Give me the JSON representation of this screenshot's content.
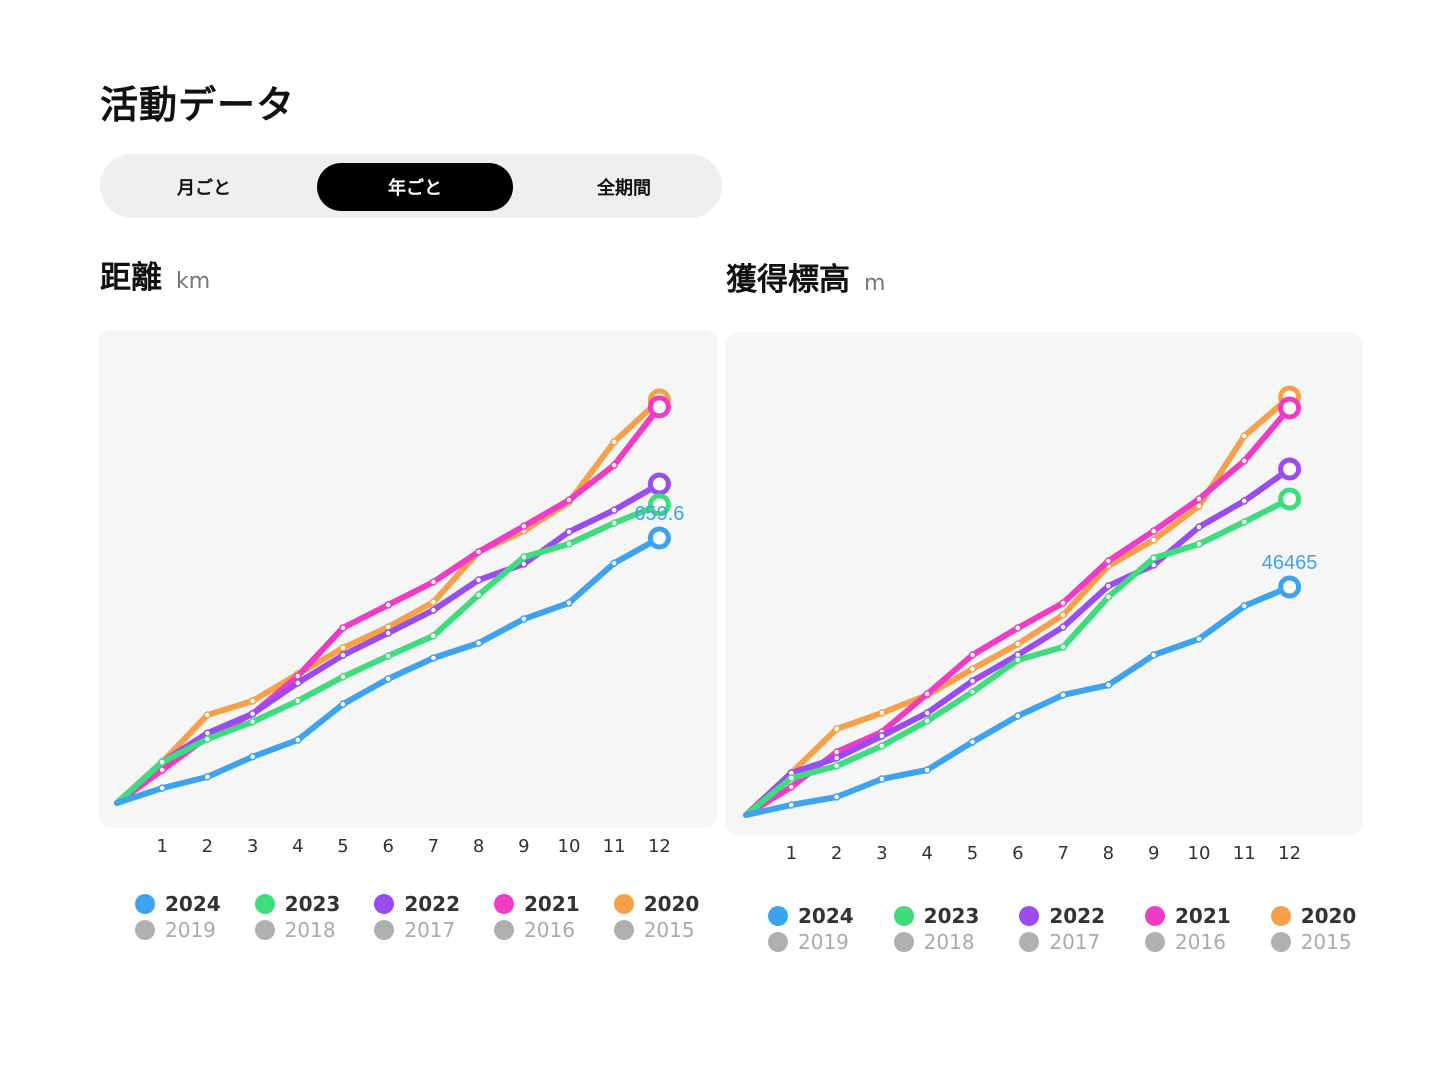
{
  "page_title": "活動データ",
  "segments": [
    {
      "label": "月ごと",
      "active": false
    },
    {
      "label": "年ごと",
      "active": true
    },
    {
      "label": "全期間",
      "active": false
    }
  ],
  "legend": [
    {
      "year": "2024",
      "old_year": "2019",
      "color": "#3ea3ee"
    },
    {
      "year": "2023",
      "old_year": "2018",
      "color": "#3edc7c"
    },
    {
      "year": "2022",
      "old_year": "2017",
      "color": "#9a4cf0"
    },
    {
      "year": "2021",
      "old_year": "2016",
      "color": "#f03cc4"
    },
    {
      "year": "2020",
      "old_year": "2015",
      "color": "#f7a04a"
    }
  ],
  "inactive_color": "#b0b0b0",
  "chart_data": [
    {
      "type": "line",
      "title": "距離",
      "unit": "km",
      "categories": [
        "1",
        "2",
        "3",
        "4",
        "5",
        "6",
        "7",
        "8",
        "9",
        "10",
        "11",
        "12"
      ],
      "highlight_label": "659.6",
      "series": [
        {
          "name": "2020",
          "color": "#f7a04a",
          "values": [
            102,
            219,
            254,
            321,
            386,
            438,
            500,
            625,
            677,
            749,
            899,
            1003
          ]
        },
        {
          "name": "2021",
          "color": "#f03cc4",
          "values": [
            82,
            164,
            222,
            316,
            436,
            493,
            550,
            625,
            689,
            754,
            841,
            986
          ]
        },
        {
          "name": "2022",
          "color": "#9a4cf0",
          "values": [
            102,
            174,
            222,
            299,
            368,
            423,
            480,
            555,
            595,
            675,
            729,
            794
          ]
        },
        {
          "name": "2023",
          "color": "#3edc7c",
          "values": [
            102,
            159,
            202,
            254,
            314,
            366,
            416,
            518,
            612,
            645,
            697,
            742
          ]
        },
        {
          "name": "2024",
          "color": "#3ea3ee",
          "values": [
            37,
            65,
            115,
            157,
            246,
            309,
            361,
            398,
            458,
            498,
            597,
            659.6
          ]
        }
      ]
    },
    {
      "type": "line",
      "title": "獲得標高",
      "unit": "m",
      "categories": [
        "1",
        "2",
        "3",
        "4",
        "5",
        "6",
        "7",
        "8",
        "9",
        "10",
        "11",
        "12"
      ],
      "highlight_label": "46465",
      "series": [
        {
          "name": "2020",
          "color": "#f7a04a",
          "values": [
            8560,
            17530,
            20790,
            24460,
            29760,
            34850,
            40760,
            50750,
            56050,
            62980,
            77240,
            85190
          ]
        },
        {
          "name": "2021",
          "color": "#f03cc4",
          "values": [
            5710,
            12840,
            16920,
            24660,
            32610,
            38110,
            43210,
            51770,
            57880,
            64400,
            72150,
            82950
          ]
        },
        {
          "name": "2022",
          "color": "#9a4cf0",
          "values": [
            8560,
            11620,
            16100,
            20790,
            27310,
            32610,
            38310,
            46670,
            50950,
            58690,
            63990,
            70510
          ]
        },
        {
          "name": "2023",
          "color": "#3edc7c",
          "values": [
            7540,
            9990,
            14060,
            19160,
            25060,
            31580,
            34230,
            44420,
            52360,
            55220,
            59710,
            64400
          ]
        },
        {
          "name": "2024",
          "color": "#3ea3ee",
          "values": [
            2040,
            3670,
            7340,
            9170,
            14880,
            20180,
            24460,
            26490,
            32610,
            35870,
            42590,
            46465
          ]
        }
      ]
    }
  ]
}
